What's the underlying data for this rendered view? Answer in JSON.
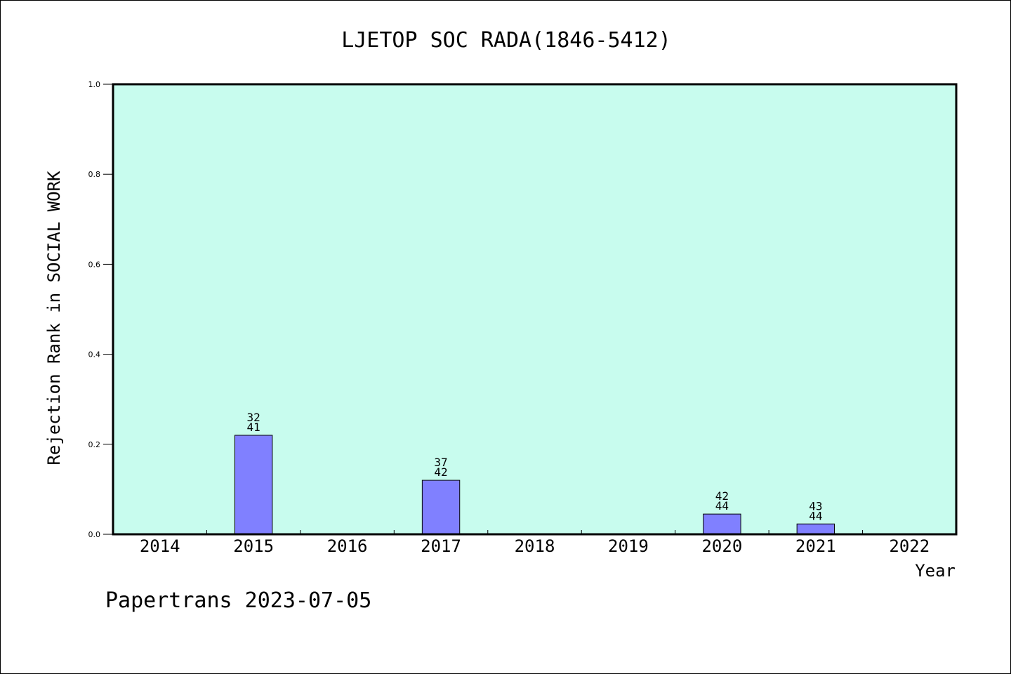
{
  "chart_data": {
    "type": "bar",
    "title": "LJETOP SOC RADA(1846-5412)",
    "xlabel": "Year",
    "ylabel": "Rejection Rank in SOCIAL WORK",
    "categories": [
      "2014",
      "2015",
      "2016",
      "2017",
      "2018",
      "2019",
      "2020",
      "2021",
      "2022"
    ],
    "values": [
      null,
      0.22,
      null,
      0.12,
      null,
      null,
      0.045,
      0.023,
      null
    ],
    "bar_labels": [
      null,
      [
        "32",
        "41"
      ],
      null,
      [
        "37",
        "42"
      ],
      null,
      null,
      [
        "42",
        "44"
      ],
      [
        "43",
        "44"
      ],
      null
    ],
    "ylim": [
      0,
      1.0
    ],
    "yticks": [
      "0.0",
      "0.2",
      "0.4",
      "0.6",
      "0.8",
      "1.0"
    ],
    "grid": false,
    "colors": {
      "plot_background": "#c8fcee",
      "bar_fill": "#8080ff",
      "bar_stroke": "#000000"
    }
  },
  "footer": "Papertrans 2023-07-05"
}
